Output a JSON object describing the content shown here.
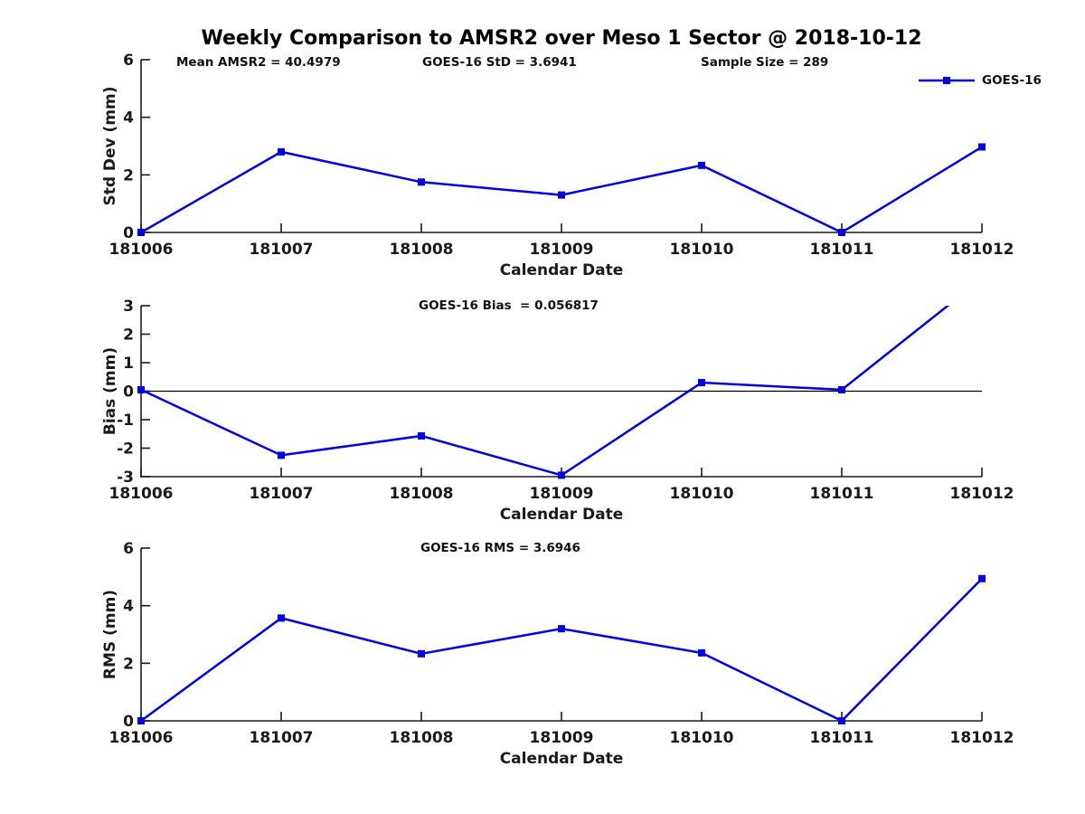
{
  "title": "Weekly Comparison to AMSR2 over Meso 1 Sector @ 2018-10-12",
  "colors": {
    "line": "#0000dd",
    "axis": "#1a1a1a",
    "text": "#1a1a1a",
    "title": "#000000",
    "zero_line": "#000000",
    "background": "#ffffff"
  },
  "legend": {
    "label": "GOES-16",
    "position": "top-right-outside"
  },
  "chart_data": [
    {
      "type": "line",
      "x": [
        "181006",
        "181007",
        "181008",
        "181009",
        "181010",
        "181011",
        "181012"
      ],
      "series": [
        {
          "name": "GOES-16",
          "values": [
            0,
            2.8,
            1.75,
            1.3,
            2.33,
            0,
            2.97
          ]
        }
      ],
      "xlabel": "Calendar Date",
      "ylabel": "Std Dev (mm)",
      "ylim": [
        0,
        6
      ],
      "yticks": [
        0,
        2,
        4,
        6
      ],
      "grid": false,
      "zero_line": false,
      "marker": "square",
      "annotations": [
        "Mean AMSR2 = 40.4979",
        "GOES-16 StD = 3.6941",
        "Sample Size = 289"
      ]
    },
    {
      "type": "line",
      "x": [
        "181006",
        "181007",
        "181008",
        "181009",
        "181010",
        "181011",
        "181012"
      ],
      "series": [
        {
          "name": "GOES-16",
          "values": [
            0.05,
            -2.25,
            -1.57,
            -2.95,
            0.3,
            0.05,
            3.95
          ]
        }
      ],
      "xlabel": "Calendar Date",
      "ylabel": "Bias (mm)",
      "ylim": [
        -3,
        3
      ],
      "yticks": [
        3,
        2,
        1,
        0,
        -1,
        -2,
        -3
      ],
      "grid": false,
      "zero_line": true,
      "marker": "square",
      "annotations": [
        "GOES-16 Bias  = 0.056817"
      ]
    },
    {
      "type": "line",
      "x": [
        "181006",
        "181007",
        "181008",
        "181009",
        "181010",
        "181011",
        "181012"
      ],
      "series": [
        {
          "name": "GOES-16",
          "values": [
            0,
            3.57,
            2.33,
            3.2,
            2.36,
            0,
            4.94
          ]
        }
      ],
      "xlabel": "Calendar Date",
      "ylabel": "RMS (mm)",
      "ylim": [
        0,
        6
      ],
      "yticks": [
        0,
        2,
        4,
        6
      ],
      "grid": false,
      "zero_line": false,
      "marker": "square",
      "annotations": [
        "GOES-16 RMS = 3.6946"
      ]
    }
  ]
}
